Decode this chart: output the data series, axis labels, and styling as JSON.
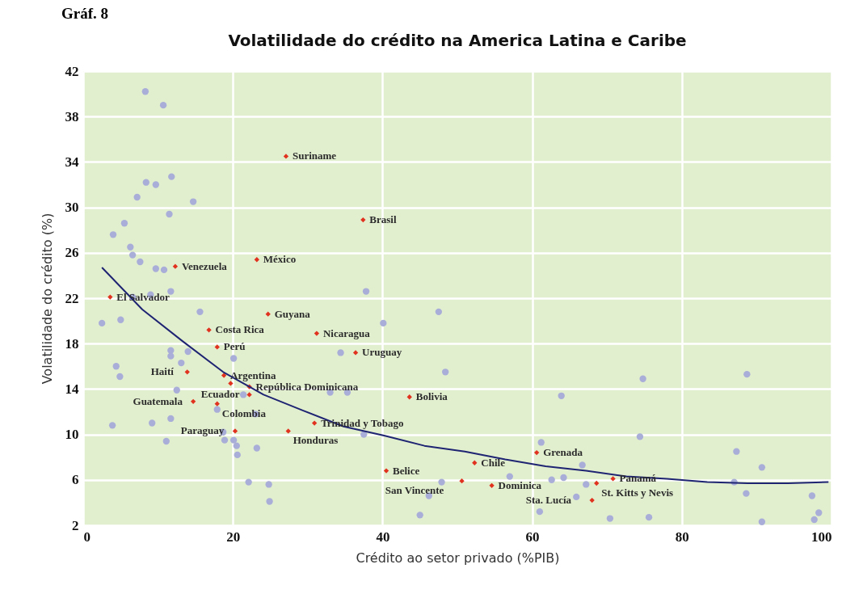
{
  "chart_data": {
    "type": "scatter",
    "title": "Volatilidade do crédito na America Latina e Caribe",
    "xlabel": "Crédito ao setor privado (%PIB)",
    "ylabel": "Volatilidade do crédito (%)",
    "xlim": [
      0,
      100
    ],
    "xticks": [
      0,
      20,
      40,
      60,
      80,
      100
    ],
    "ylim": [
      2,
      42
    ],
    "yticks": [
      2,
      6,
      10,
      14,
      18,
      22,
      26,
      30,
      34,
      38,
      42
    ],
    "grid": true,
    "series": [
      {
        "type": "scatter",
        "marker": "circle",
        "color": "#a9aed8",
        "x": [
          8.3,
          10.7,
          8.4,
          9.7,
          11.8,
          7.2,
          14.7,
          11.5,
          5.5,
          4.0,
          6.3,
          7.6,
          6.6,
          9.7,
          10.8,
          11.7,
          9.0,
          6.6,
          15.6,
          2.5,
          5.0,
          11.7,
          14.0,
          11.7,
          13.1,
          4.4,
          4.9,
          12.5,
          20.1,
          21.4,
          23.0,
          17.9,
          3.9,
          9.2,
          11.7,
          11.1,
          18.7,
          18.9,
          20.1,
          20.5,
          23.2,
          20.6,
          22.1,
          24.8,
          24.9,
          37.8,
          47.5,
          40.1,
          34.4,
          48.4,
          35.3,
          33.0,
          63.9,
          37.5,
          61.2,
          57.0,
          47.9,
          46.2,
          45.0,
          62.6,
          64.2,
          65.9,
          61.0,
          66.7,
          74.8,
          88.7,
          74.4,
          87.3,
          90.7,
          97.4,
          98.3,
          97.7,
          90.7,
          75.6,
          70.4,
          88.6,
          87.0,
          67.2
        ],
        "values": [
          40.2,
          39.0,
          32.2,
          32.0,
          32.7,
          30.9,
          30.5,
          29.4,
          28.6,
          27.6,
          26.5,
          25.2,
          25.8,
          24.6,
          24.5,
          22.6,
          22.3,
          22.1,
          20.8,
          19.8,
          20.1,
          17.4,
          17.3,
          16.9,
          16.3,
          16.0,
          15.1,
          13.9,
          16.7,
          13.5,
          11.8,
          12.2,
          10.8,
          11.0,
          11.4,
          9.4,
          10.2,
          9.5,
          9.5,
          9.0,
          8.8,
          8.2,
          5.8,
          5.6,
          4.1,
          22.6,
          20.8,
          19.8,
          17.2,
          15.5,
          13.7,
          13.7,
          13.4,
          10.0,
          9.3,
          6.3,
          5.8,
          4.6,
          2.9,
          6.0,
          6.2,
          4.5,
          3.2,
          7.3,
          14.9,
          15.3,
          9.8,
          8.5,
          7.1,
          4.6,
          3.1,
          2.5,
          2.3,
          2.7,
          2.6,
          4.8,
          5.8,
          5.6
        ]
      },
      {
        "type": "scatter",
        "marker": "diamond",
        "color": "#e0321e",
        "x": [
          27.1,
          37.4,
          23.2,
          12.3,
          3.6,
          24.7,
          16.8,
          31.2,
          17.9,
          36.4,
          13.9,
          18.8,
          19.7,
          22.2,
          22.2,
          43.6,
          14.7,
          17.9,
          30.9,
          20.3,
          27.4,
          60.6,
          52.3,
          40.5,
          50.6,
          54.6,
          70.8,
          68.6,
          68.0
        ],
        "values": [
          34.5,
          28.9,
          25.4,
          24.8,
          22.1,
          20.6,
          19.2,
          18.9,
          17.7,
          17.2,
          15.5,
          15.2,
          14.5,
          14.2,
          13.5,
          13.3,
          12.9,
          12.7,
          11.0,
          10.3,
          10.3,
          8.4,
          7.5,
          6.8,
          5.9,
          5.5,
          6.1,
          5.7,
          4.2
        ]
      },
      {
        "type": "line",
        "color": "#1f2472",
        "x": [
          2.5,
          7.9,
          13.3,
          18.7,
          24.1,
          29.4,
          34.8,
          40.2,
          45.6,
          51,
          56.4,
          61.8,
          67.2,
          72.6,
          78,
          83.4,
          88.8,
          94.2,
          99.6
        ],
        "values": [
          24.7,
          21,
          18.2,
          15.5,
          13.5,
          12.1,
          10.7,
          9.9,
          9.0,
          8.5,
          7.8,
          7.2,
          6.8,
          6.3,
          6.1,
          5.8,
          5.7,
          5.7,
          5.8
        ]
      }
    ],
    "annotations": [
      "Gráf. 8",
      {
        "text": "Suriname",
        "x": 27.1,
        "y": 34.5
      },
      {
        "text": "Brasil",
        "x": 37.4,
        "y": 28.9
      },
      {
        "text": "México",
        "x": 23.2,
        "y": 25.4
      },
      {
        "text": "Venezuela",
        "x": 12.3,
        "y": 24.8
      },
      {
        "text": "El Salvador",
        "x": 3.6,
        "y": 22.1
      },
      {
        "text": "Guyana",
        "x": 24.7,
        "y": 20.6
      },
      {
        "text": "Costa Rica",
        "x": 16.8,
        "y": 19.2
      },
      {
        "text": "Nicaragua",
        "x": 31.2,
        "y": 18.9
      },
      {
        "text": "Perú",
        "x": 17.9,
        "y": 17.7
      },
      {
        "text": "Uruguay",
        "x": 36.4,
        "y": 17.2
      },
      {
        "text": "Haití",
        "x": 13.9,
        "y": 15.5
      },
      {
        "text": "Argentina",
        "x": 18.8,
        "y": 15.2
      },
      {
        "text": "República Dominicana",
        "x": 22.2,
        "y": 14.2
      },
      {
        "text": "Ecuador",
        "x": 22.2,
        "y": 13.5
      },
      {
        "text": "Bolivia",
        "x": 43.6,
        "y": 13.3
      },
      {
        "text": "Guatemala",
        "x": 14.7,
        "y": 12.9
      },
      {
        "text": "Colombia",
        "x": 17.9,
        "y": 12.7
      },
      {
        "text": "Trinidad y Tobago",
        "x": 30.9,
        "y": 11.0
      },
      {
        "text": "Paraguay",
        "x": 20.3,
        "y": 10.3
      },
      {
        "text": "Honduras",
        "x": 27.4,
        "y": 10.3
      },
      {
        "text": "Grenada",
        "x": 60.6,
        "y": 8.4
      },
      {
        "text": "Chile",
        "x": 52.3,
        "y": 7.5
      },
      {
        "text": "Belice",
        "x": 40.5,
        "y": 6.8
      },
      {
        "text": "San Vincente",
        "x": 50.6,
        "y": 5.9
      },
      {
        "text": "Dominica",
        "x": 54.6,
        "y": 5.5
      },
      {
        "text": "Panamá",
        "x": 70.8,
        "y": 6.1
      },
      {
        "text": "St. Kitts y Nevis",
        "x": 68.6,
        "y": 5.7
      },
      {
        "text": "Sta. Lucía",
        "x": 68.0,
        "y": 4.2
      }
    ]
  }
}
